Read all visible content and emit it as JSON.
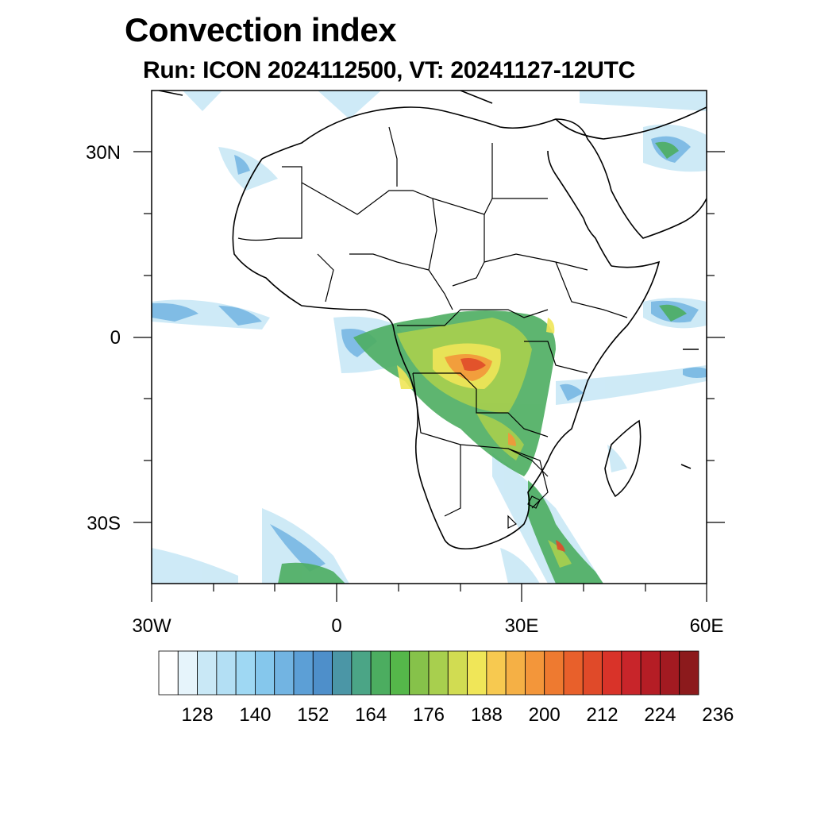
{
  "title": "Convection index",
  "subtitle": "Run: ICON 2024112500,  VT: 20241127-12UTC",
  "map": {
    "lat_labels": [
      "30N",
      "0",
      "30S"
    ],
    "lon_labels": [
      "30W",
      "0",
      "30E",
      "60E"
    ],
    "extent": {
      "lon": [
        -30,
        60
      ],
      "lat": [
        -40,
        40
      ]
    }
  },
  "colorbar": {
    "labels": [
      "128",
      "140",
      "152",
      "164",
      "176",
      "188",
      "200",
      "212",
      "224",
      "236"
    ],
    "colors": [
      "#ffffff",
      "#e6f4fb",
      "#c9e8f6",
      "#b3dff4",
      "#9fd8f3",
      "#85c7ec",
      "#72b4e2",
      "#5c9fd6",
      "#4e8fca",
      "#4b96a6",
      "#4ba586",
      "#4cad60",
      "#55b74a",
      "#86c24a",
      "#a8cf4e",
      "#d1dc52",
      "#f0e658",
      "#f7c950",
      "#f5b045",
      "#f3963a",
      "#ee7a30",
      "#e8602b",
      "#e04a29",
      "#d93329",
      "#c8252a",
      "#b51d25",
      "#a21a21",
      "#8c1a1c"
    ]
  }
}
